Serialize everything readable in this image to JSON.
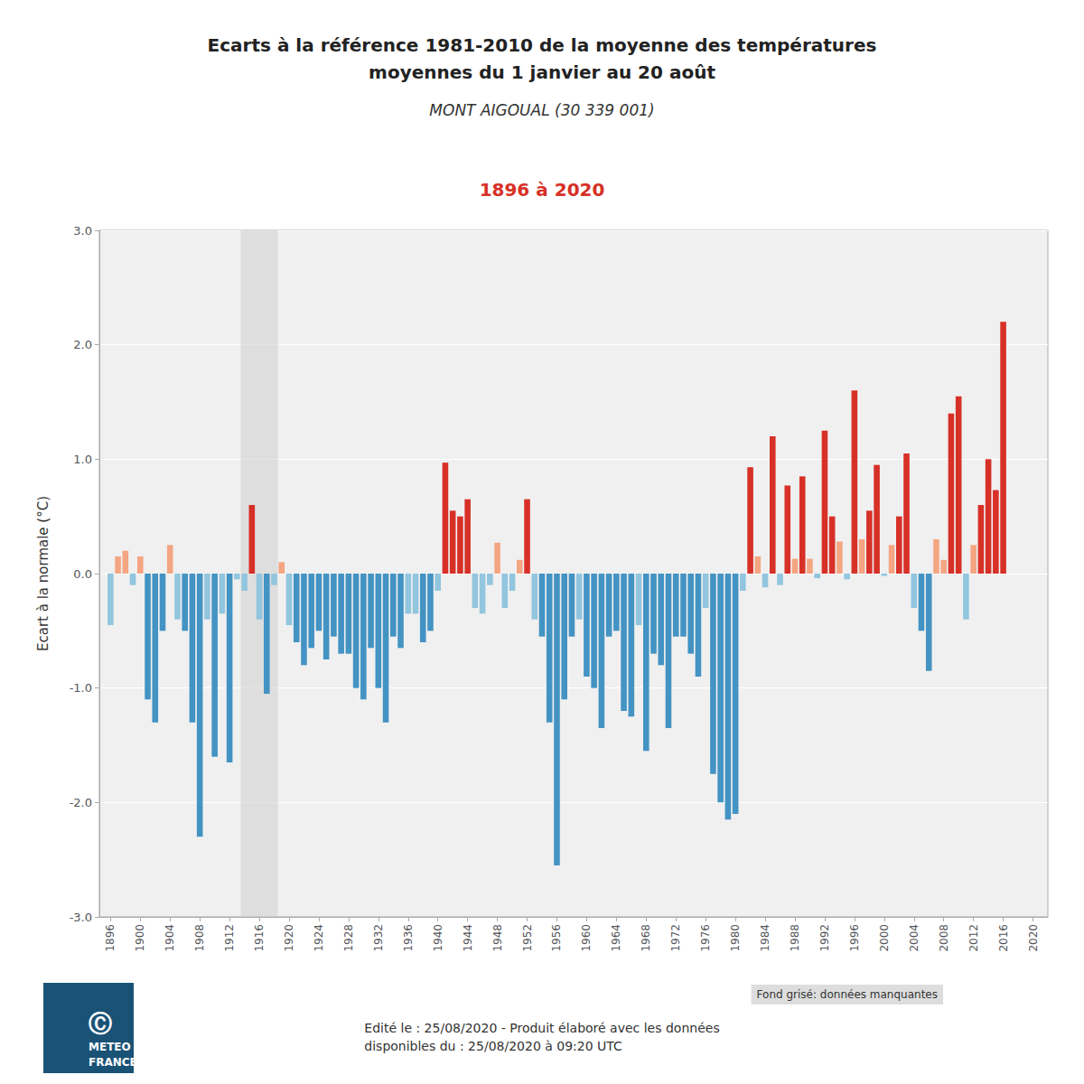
{
  "chart_data": {
    "type": "bar",
    "title": "Ecarts à la référence 1981-2010 de la moyenne des températures\nmoyennes du 1 janvier au 20 août",
    "subtitle": "MONT AIGOUAL (30 339 001)",
    "period_label": "1896 à 2020",
    "y_label": "Ecart à la normale (°C)",
    "note": "Fond grisé: données manquantes",
    "footer": [
      "Edité le : 25/08/2020 - Produit élaboré avec les données",
      "disponibles du : 25/08/2020 à 09:20 UTC"
    ],
    "logo": [
      "Ⓒ",
      "METEO",
      "FRANCE"
    ],
    "missing_band": [
      1913.5,
      1918.5
    ],
    "x": [
      1896,
      1897,
      1898,
      1899,
      1900,
      1901,
      1902,
      1903,
      1904,
      1905,
      1906,
      1907,
      1908,
      1909,
      1910,
      1911,
      1912,
      1913,
      1914,
      1915,
      1916,
      1917,
      1918,
      1919,
      1920,
      1921,
      1922,
      1923,
      1924,
      1925,
      1926,
      1927,
      1928,
      1929,
      1930,
      1931,
      1932,
      1933,
      1934,
      1935,
      1936,
      1937,
      1938,
      1939,
      1940,
      1941,
      1942,
      1943,
      1944,
      1945,
      1946,
      1947,
      1948,
      1949,
      1950,
      1951,
      1952,
      1953,
      1954,
      1955,
      1956,
      1957,
      1958,
      1959,
      1960,
      1961,
      1962,
      1963,
      1964,
      1965,
      1966,
      1967,
      1968,
      1969,
      1970,
      1971,
      1972,
      1973,
      1974,
      1975,
      1976,
      1977,
      1978,
      1979,
      1980,
      1981,
      1982,
      1983,
      1984,
      1985,
      1986,
      1987,
      1988,
      1989,
      1990,
      1991,
      1992,
      1993,
      1994,
      1995,
      1996,
      1997,
      1998,
      1999,
      2000,
      2001,
      2002,
      2003,
      2004,
      2005,
      2006,
      2007,
      2008,
      2009,
      2010,
      2011,
      2012,
      2013,
      2014,
      2015,
      2016,
      2017,
      2018,
      2019,
      2020
    ],
    "values": [
      -0.45,
      0.15,
      0.2,
      -0.1,
      0.15,
      -1.1,
      -1.3,
      -0.5,
      0.25,
      -0.4,
      -0.5,
      -1.3,
      -2.3,
      -0.4,
      -1.6,
      -0.35,
      -1.65,
      -0.05,
      -0.15,
      0.6,
      -0.4,
      -1.05,
      -0.1,
      0.1,
      -0.45,
      -0.6,
      -0.8,
      -0.65,
      -0.5,
      -0.75,
      -0.55,
      -0.7,
      -0.7,
      -1.0,
      -1.1,
      -0.65,
      -1.0,
      -1.3,
      -0.55,
      -0.65,
      -0.35,
      -0.35,
      -0.6,
      -0.5,
      -0.15,
      0.97,
      0.55,
      0.5,
      0.65,
      -0.3,
      -0.35,
      -0.1,
      0.27,
      -0.3,
      -0.15,
      0.12,
      0.65,
      -0.4,
      -0.55,
      -1.3,
      -2.55,
      -1.1,
      -0.55,
      -0.4,
      -0.9,
      -1.0,
      -1.35,
      -0.55,
      -0.5,
      -1.2,
      -1.25,
      -0.45,
      -1.55,
      -0.7,
      -0.8,
      -1.35,
      -0.55,
      -0.55,
      -0.7,
      -0.9,
      -0.3,
      -1.75,
      -2.0,
      -2.15,
      -2.1,
      -0.15,
      0.93,
      0.15,
      -0.12,
      1.2,
      -0.1,
      0.77,
      0.13,
      0.85,
      0.13,
      -0.04,
      1.25,
      0.5,
      0.28,
      -0.05,
      1.6,
      0.3,
      0.55,
      0.95,
      -0.02,
      0.25,
      0.5,
      1.05,
      -0.3,
      -0.5,
      -0.85,
      0.3,
      0.12,
      1.4,
      1.55,
      -0.4,
      0.25,
      0.6,
      1.0,
      0.73,
      2.2,
      0.0,
      0.0,
      0.0,
      0.0
    ],
    "colors": [
      "#92c5de",
      "#f4a582",
      "#f4a582",
      "#92c5de",
      "#f4a582",
      "#4393c3",
      "#4393c3",
      "#4393c3",
      "#f4a582",
      "#92c5de",
      "#4393c3",
      "#4393c3",
      "#4393c3",
      "#92c5de",
      "#4393c3",
      "#92c5de",
      "#4393c3",
      "#92c5de",
      "#92c5de",
      "#d73027",
      "#92c5de",
      "#4393c3",
      "#92c5de",
      "#f4a582",
      "#92c5de",
      "#4393c3",
      "#4393c3",
      "#4393c3",
      "#4393c3",
      "#4393c3",
      "#4393c3",
      "#4393c3",
      "#4393c3",
      "#4393c3",
      "#4393c3",
      "#4393c3",
      "#4393c3",
      "#4393c3",
      "#4393c3",
      "#4393c3",
      "#92c5de",
      "#92c5de",
      "#4393c3",
      "#4393c3",
      "#92c5de",
      "#d73027",
      "#d73027",
      "#d73027",
      "#d73027",
      "#92c5de",
      "#92c5de",
      "#92c5de",
      "#f4a582",
      "#92c5de",
      "#92c5de",
      "#f4a582",
      "#d73027",
      "#92c5de",
      "#4393c3",
      "#4393c3",
      "#4393c3",
      "#4393c3",
      "#4393c3",
      "#92c5de",
      "#4393c3",
      "#4393c3",
      "#4393c3",
      "#4393c3",
      "#4393c3",
      "#4393c3",
      "#4393c3",
      "#92c5de",
      "#4393c3",
      "#4393c3",
      "#4393c3",
      "#4393c3",
      "#4393c3",
      "#4393c3",
      "#4393c3",
      "#4393c3",
      "#92c5de",
      "#4393c3",
      "#4393c3",
      "#4393c3",
      "#4393c3",
      "#92c5de",
      "#d73027",
      "#f4a582",
      "#92c5de",
      "#d73027",
      "#92c5de",
      "#d73027",
      "#f4a582",
      "#d73027",
      "#f4a582",
      "#92c5de",
      "#d73027",
      "#d73027",
      "#f4a582",
      "#92c5de",
      "#d73027",
      "#f4a582",
      "#d73027",
      "#d73027",
      "#92c5de",
      "#f4a582",
      "#d73027",
      "#d73027",
      "#92c5de",
      "#4393c3",
      "#4393c3",
      "#f4a582",
      "#f4a582",
      "#d73027",
      "#d73027",
      "#92c5de",
      "#f4a582",
      "#d73027",
      "#d73027",
      "#d73027",
      "#d73027",
      "#f4a582",
      "#f4a582",
      "#f4a582",
      "#f4a582"
    ],
    "xlim": [
      1894.5,
      2022
    ],
    "xticks": [
      1896,
      1900,
      1904,
      1908,
      1912,
      1916,
      1920,
      1924,
      1928,
      1932,
      1936,
      1940,
      1944,
      1948,
      1952,
      1956,
      1960,
      1964,
      1968,
      1972,
      1976,
      1980,
      1984,
      1988,
      1992,
      1996,
      2000,
      2004,
      2008,
      2012,
      2016,
      2020
    ],
    "ylim": [
      -3.0,
      3.0
    ],
    "yticks": [
      {
        "value": -3.0,
        "label": "-3.0"
      },
      {
        "value": -2.0,
        "label": "-2.0"
      },
      {
        "value": -1.0,
        "label": "-1.0"
      },
      {
        "value": 0.0,
        "label": "0.0"
      },
      {
        "value": 1.0,
        "label": "1.0"
      },
      {
        "value": 2.0,
        "label": "2.0"
      },
      {
        "value": 3.0,
        "label": "3.0"
      }
    ],
    "grid": true
  }
}
